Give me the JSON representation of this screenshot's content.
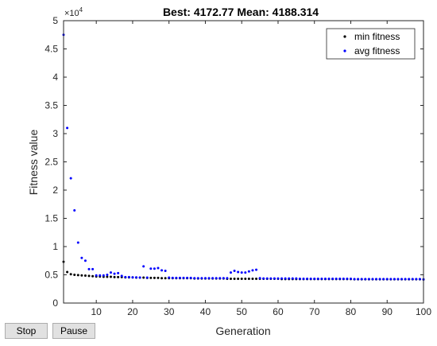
{
  "toolbar": {
    "stop_label": "Stop",
    "pause_label": "Pause"
  },
  "colors": {
    "min_fitness": "#000000",
    "avg_fitness": "#0000ff",
    "axis": "#262626"
  },
  "chart_data": {
    "type": "scatter",
    "title": "Best: 4172.77 Mean: 4188.314",
    "xlabel": "Generation",
    "ylabel": "Fitness value",
    "y_exponent_label": "×10",
    "y_exponent_power": "4",
    "xlim": [
      1,
      100
    ],
    "ylim": [
      0,
      50000
    ],
    "grid": false,
    "legend_position": "top-right",
    "x_ticks": [
      10,
      20,
      30,
      40,
      50,
      60,
      70,
      80,
      90,
      100
    ],
    "x_tick_labels": [
      "10",
      "20",
      "30",
      "40",
      "50",
      "60",
      "70",
      "80",
      "90",
      "100"
    ],
    "y_ticks": [
      0,
      5000,
      10000,
      15000,
      20000,
      25000,
      30000,
      35000,
      40000,
      45000,
      50000
    ],
    "y_tick_labels": [
      "0",
      "0.5",
      "1",
      "1.5",
      "2",
      "2.5",
      "3",
      "3.5",
      "4",
      "4.5",
      "5"
    ],
    "series": [
      {
        "name": "min fitness",
        "color": "#000000",
        "x": [
          1,
          2,
          3,
          4,
          5,
          6,
          7,
          8,
          9,
          10,
          11,
          12,
          13,
          14,
          15,
          16,
          17,
          18,
          19,
          20,
          21,
          22,
          23,
          24,
          25,
          26,
          27,
          28,
          29,
          30,
          31,
          32,
          33,
          34,
          35,
          36,
          37,
          38,
          39,
          40,
          41,
          42,
          43,
          44,
          45,
          46,
          47,
          48,
          49,
          50,
          51,
          52,
          53,
          54,
          55,
          56,
          57,
          58,
          59,
          60,
          61,
          62,
          63,
          64,
          65,
          66,
          67,
          68,
          69,
          70,
          71,
          72,
          73,
          74,
          75,
          76,
          77,
          78,
          79,
          80,
          81,
          82,
          83,
          84,
          85,
          86,
          87,
          88,
          89,
          90,
          91,
          92,
          93,
          94,
          95,
          96,
          97,
          98,
          99,
          100
        ],
        "y": [
          7300,
          5500,
          5100,
          5000,
          4950,
          4900,
          4850,
          4800,
          4750,
          4700,
          4700,
          4650,
          4650,
          4650,
          4600,
          4600,
          4600,
          4550,
          4550,
          4550,
          4500,
          4500,
          4500,
          4450,
          4450,
          4450,
          4450,
          4400,
          4400,
          4400,
          4400,
          4400,
          4400,
          4400,
          4400,
          4400,
          4350,
          4350,
          4350,
          4350,
          4350,
          4350,
          4350,
          4350,
          4350,
          4300,
          4300,
          4300,
          4300,
          4300,
          4300,
          4300,
          4300,
          4300,
          4300,
          4300,
          4300,
          4300,
          4300,
          4300,
          4250,
          4250,
          4250,
          4250,
          4250,
          4250,
          4250,
          4250,
          4250,
          4250,
          4250,
          4250,
          4250,
          4250,
          4250,
          4250,
          4250,
          4250,
          4250,
          4250,
          4200,
          4200,
          4200,
          4200,
          4200,
          4200,
          4200,
          4200,
          4200,
          4200,
          4200,
          4200,
          4200,
          4200,
          4200,
          4200,
          4200,
          4200,
          4200,
          4173
        ]
      },
      {
        "name": "avg fitness",
        "color": "#0000ff",
        "x": [
          1,
          2,
          3,
          4,
          5,
          6,
          7,
          8,
          9,
          10,
          11,
          12,
          13,
          14,
          15,
          16,
          17,
          18,
          19,
          20,
          21,
          22,
          23,
          24,
          25,
          26,
          27,
          28,
          29,
          30,
          31,
          32,
          33,
          34,
          35,
          36,
          37,
          38,
          39,
          40,
          41,
          42,
          43,
          44,
          45,
          46,
          47,
          48,
          49,
          50,
          51,
          52,
          53,
          54,
          55,
          56,
          57,
          58,
          59,
          60,
          61,
          62,
          63,
          64,
          65,
          66,
          67,
          68,
          69,
          70,
          71,
          72,
          73,
          74,
          75,
          76,
          77,
          78,
          79,
          80,
          81,
          82,
          83,
          84,
          85,
          86,
          87,
          88,
          89,
          90,
          91,
          92,
          93,
          94,
          95,
          96,
          97,
          98,
          99,
          100
        ],
        "y": [
          47500,
          31000,
          22100,
          16400,
          10700,
          8000,
          7500,
          6000,
          6000,
          4900,
          4900,
          4900,
          5000,
          5400,
          5200,
          5300,
          4800,
          4600,
          4600,
          4550,
          4550,
          4500,
          6500,
          4500,
          6100,
          6100,
          6200,
          5800,
          5700,
          4500,
          4450,
          4450,
          4450,
          4450,
          4450,
          4450,
          4400,
          4400,
          4400,
          4400,
          4400,
          4400,
          4400,
          4400,
          4400,
          4400,
          5400,
          5700,
          5500,
          5400,
          5400,
          5600,
          5800,
          5900,
          4400,
          4350,
          4350,
          4350,
          4350,
          4350,
          4350,
          4350,
          4350,
          4350,
          4350,
          4300,
          4300,
          4300,
          4300,
          4300,
          4300,
          4300,
          4300,
          4300,
          4300,
          4300,
          4300,
          4300,
          4300,
          4300,
          4250,
          4250,
          4250,
          4250,
          4250,
          4250,
          4250,
          4250,
          4250,
          4250,
          4250,
          4250,
          4250,
          4250,
          4250,
          4250,
          4250,
          4250,
          4250,
          4188
        ]
      }
    ]
  }
}
